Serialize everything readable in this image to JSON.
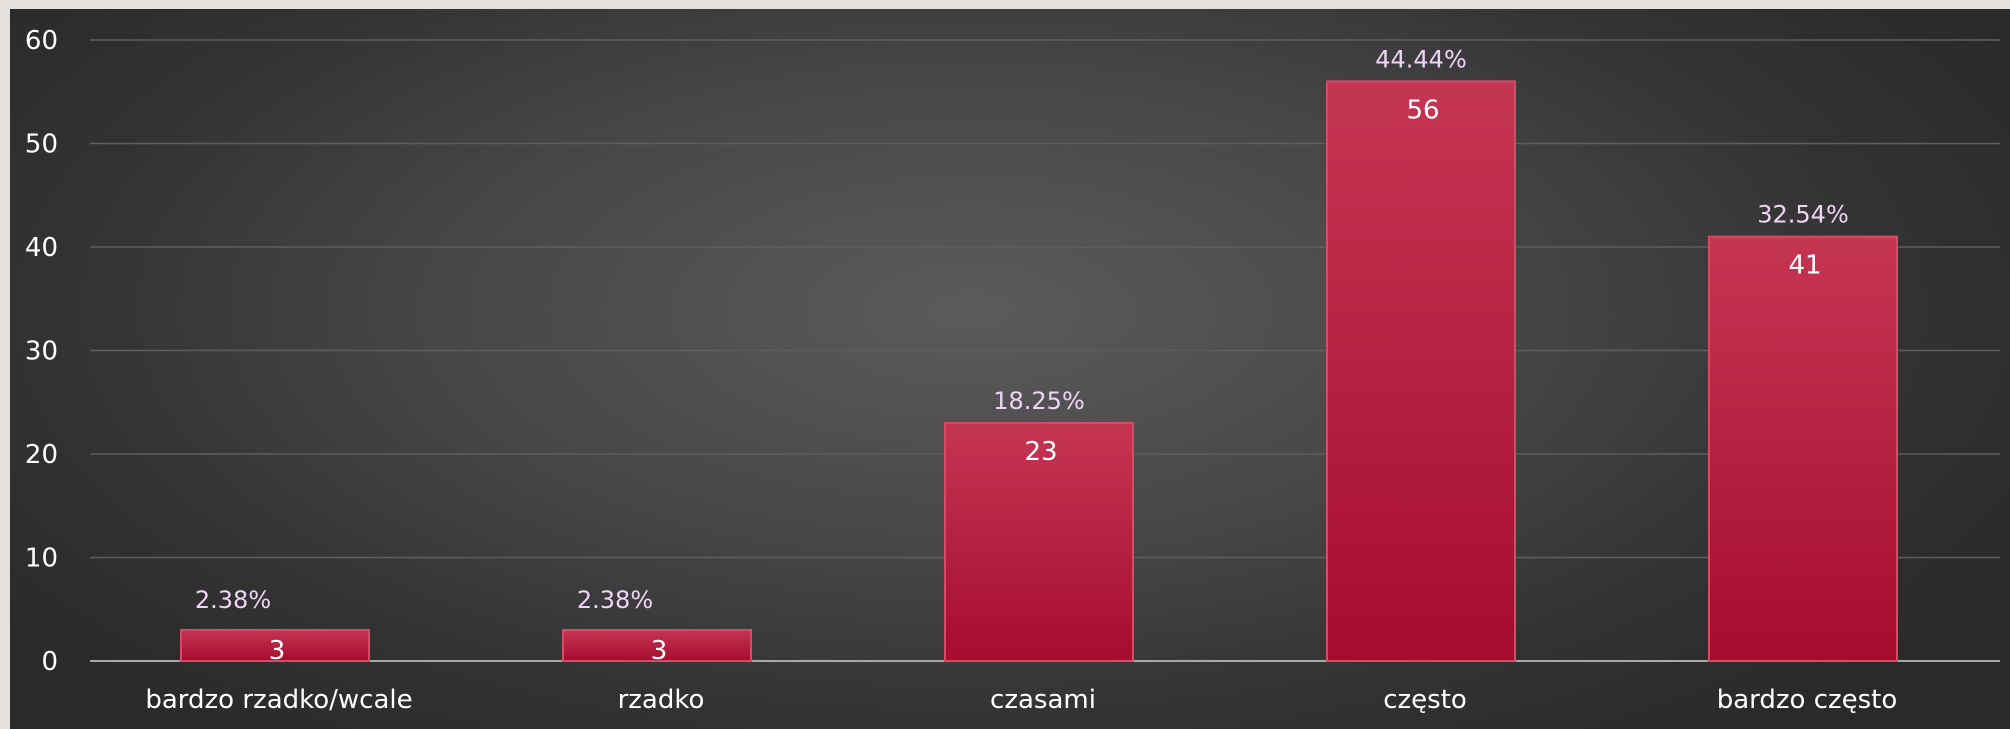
{
  "chart_data": {
    "type": "bar",
    "title": "",
    "xlabel": "",
    "ylabel": "",
    "categories": [
      "bardzo rzadko/wcale",
      "rzadko",
      "czasami",
      "często",
      "bardzo często"
    ],
    "values": [
      3,
      3,
      23,
      56,
      41
    ],
    "value_labels": [
      "3",
      "3",
      "23",
      "56",
      "41"
    ],
    "percent_labels": [
      "2.38%",
      "2.38%",
      "18.25%",
      "44.44%",
      "32.54%"
    ],
    "ylim": [
      0,
      60
    ],
    "yticks": [
      "0",
      "10",
      "20",
      "30",
      "40",
      "50",
      "60"
    ],
    "grid": true,
    "legend": "none",
    "colors": {
      "bar_top": "#c53653",
      "bar_bottom": "#a50c2e",
      "bar_edge": "#d94a67",
      "percent_text": "#f0d4f6",
      "text": "#ffffff",
      "gridline": "#5e5e5e",
      "axis": "#a8a8a8"
    }
  }
}
